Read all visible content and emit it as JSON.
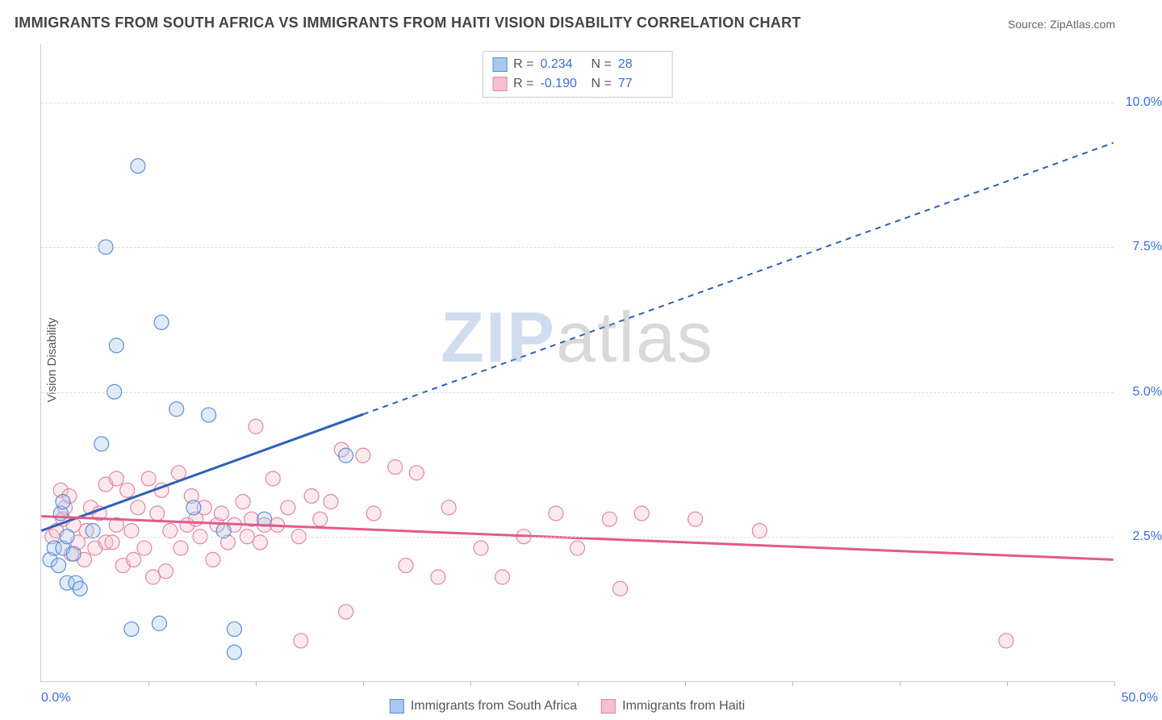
{
  "title": "IMMIGRANTS FROM SOUTH AFRICA VS IMMIGRANTS FROM HAITI VISION DISABILITY CORRELATION CHART",
  "source": "Source: ZipAtlas.com",
  "ylabel": "Vision Disability",
  "watermark_zip": "ZIP",
  "watermark_rest": "atlas",
  "chart": {
    "type": "scatter",
    "xlim": [
      0,
      50
    ],
    "ylim": [
      0,
      11
    ],
    "xtick_positions": [
      0,
      5,
      10,
      15,
      20,
      25,
      30,
      35,
      40,
      45,
      50
    ],
    "xtick_labels": {
      "left": "0.0%",
      "right": "50.0%"
    },
    "ytick_positions": [
      2.5,
      5.0,
      7.5,
      10.0
    ],
    "ytick_labels": [
      "2.5%",
      "5.0%",
      "7.5%",
      "10.0%"
    ],
    "background_color": "#ffffff",
    "grid_color": "#dddddd",
    "axis_color": "#cccccc",
    "tick_label_color": "#3b6fd6",
    "marker_radius": 9,
    "marker_stroke_width": 1.2,
    "marker_fill_opacity": 0.35,
    "trendline_width": 3,
    "series": [
      {
        "name": "Immigrants from South Africa",
        "color_fill": "#a9c7ec",
        "color_stroke": "#5b8fd6",
        "trend_color": "#2e5fb8",
        "R": "0.234",
        "N": "28",
        "trend_line": {
          "x1": 0,
          "y1": 2.6,
          "x2": 50,
          "y2": 9.3
        },
        "trend_solid_until_x": 15,
        "points": [
          [
            0.4,
            2.1
          ],
          [
            0.6,
            2.3
          ],
          [
            0.8,
            2.0
          ],
          [
            0.9,
            2.9
          ],
          [
            1.0,
            2.3
          ],
          [
            1.0,
            3.1
          ],
          [
            1.2,
            1.7
          ],
          [
            1.2,
            2.5
          ],
          [
            1.5,
            2.2
          ],
          [
            1.6,
            1.7
          ],
          [
            1.8,
            1.6
          ],
          [
            2.4,
            2.6
          ],
          [
            2.8,
            4.1
          ],
          [
            3.0,
            7.5
          ],
          [
            3.4,
            5.0
          ],
          [
            3.5,
            5.8
          ],
          [
            4.2,
            0.9
          ],
          [
            4.5,
            8.9
          ],
          [
            5.5,
            1.0
          ],
          [
            5.6,
            6.2
          ],
          [
            6.3,
            4.7
          ],
          [
            7.1,
            3.0
          ],
          [
            7.8,
            4.6
          ],
          [
            8.5,
            2.6
          ],
          [
            9.0,
            0.5
          ],
          [
            9.0,
            0.9
          ],
          [
            10.4,
            2.8
          ],
          [
            14.2,
            3.9
          ]
        ]
      },
      {
        "name": "Immigrants from Haiti",
        "color_fill": "#f6c0cd",
        "color_stroke": "#e087a0",
        "trend_color": "#e35a8a",
        "R": "-0.190",
        "N": "77",
        "trend_line": {
          "x1": 0,
          "y1": 2.85,
          "x2": 50,
          "y2": 2.1
        },
        "trend_solid_until_x": 50,
        "points": [
          [
            0.5,
            2.5
          ],
          [
            0.7,
            2.6
          ],
          [
            0.9,
            3.3
          ],
          [
            1.0,
            2.8
          ],
          [
            1.1,
            3.0
          ],
          [
            1.3,
            3.2
          ],
          [
            1.4,
            2.2
          ],
          [
            1.5,
            2.7
          ],
          [
            1.7,
            2.4
          ],
          [
            2.0,
            2.1
          ],
          [
            2.1,
            2.6
          ],
          [
            2.3,
            3.0
          ],
          [
            2.5,
            2.3
          ],
          [
            2.7,
            2.9
          ],
          [
            3.0,
            2.4
          ],
          [
            3.0,
            3.4
          ],
          [
            3.3,
            2.4
          ],
          [
            3.5,
            2.7
          ],
          [
            3.5,
            3.5
          ],
          [
            3.8,
            2.0
          ],
          [
            4.0,
            3.3
          ],
          [
            4.2,
            2.6
          ],
          [
            4.3,
            2.1
          ],
          [
            4.5,
            3.0
          ],
          [
            4.8,
            2.3
          ],
          [
            5.0,
            3.5
          ],
          [
            5.2,
            1.8
          ],
          [
            5.4,
            2.9
          ],
          [
            5.6,
            3.3
          ],
          [
            5.8,
            1.9
          ],
          [
            6.0,
            2.6
          ],
          [
            6.4,
            3.6
          ],
          [
            6.5,
            2.3
          ],
          [
            6.8,
            2.7
          ],
          [
            7.0,
            3.2
          ],
          [
            7.2,
            2.8
          ],
          [
            7.4,
            2.5
          ],
          [
            7.6,
            3.0
          ],
          [
            8.0,
            2.1
          ],
          [
            8.2,
            2.7
          ],
          [
            8.4,
            2.9
          ],
          [
            8.7,
            2.4
          ],
          [
            9.0,
            2.7
          ],
          [
            9.4,
            3.1
          ],
          [
            9.6,
            2.5
          ],
          [
            9.8,
            2.8
          ],
          [
            10.0,
            4.4
          ],
          [
            10.2,
            2.4
          ],
          [
            10.4,
            2.7
          ],
          [
            10.8,
            3.5
          ],
          [
            11.0,
            2.7
          ],
          [
            11.5,
            3.0
          ],
          [
            12.0,
            2.5
          ],
          [
            12.1,
            0.7
          ],
          [
            12.6,
            3.2
          ],
          [
            13.0,
            2.8
          ],
          [
            13.5,
            3.1
          ],
          [
            14.0,
            4.0
          ],
          [
            14.2,
            1.2
          ],
          [
            15.0,
            3.9
          ],
          [
            15.5,
            2.9
          ],
          [
            16.5,
            3.7
          ],
          [
            17.0,
            2.0
          ],
          [
            17.5,
            3.6
          ],
          [
            18.5,
            1.8
          ],
          [
            19.0,
            3.0
          ],
          [
            20.5,
            2.3
          ],
          [
            21.5,
            1.8
          ],
          [
            22.5,
            2.5
          ],
          [
            24.0,
            2.9
          ],
          [
            25.0,
            2.3
          ],
          [
            26.5,
            2.8
          ],
          [
            27.0,
            1.6
          ],
          [
            28.0,
            2.9
          ],
          [
            30.5,
            2.8
          ],
          [
            33.5,
            2.6
          ],
          [
            45.0,
            0.7
          ]
        ]
      }
    ]
  },
  "legend": {
    "bottom": [
      {
        "swatch_fill": "#a9c7ec",
        "swatch_stroke": "#5b8fd6",
        "label": "Immigrants from South Africa"
      },
      {
        "swatch_fill": "#f6c0cd",
        "swatch_stroke": "#e087a0",
        "label": "Immigrants from Haiti"
      }
    ]
  }
}
